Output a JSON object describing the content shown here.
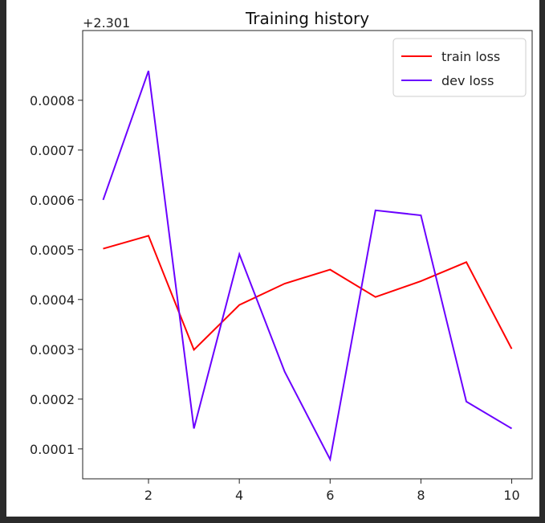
{
  "chart_data": {
    "type": "line",
    "title": "Training history",
    "y_offset_label": "+2.301",
    "x": [
      1,
      2,
      3,
      4,
      5,
      6,
      7,
      8,
      9,
      10
    ],
    "x_ticks": [
      2,
      4,
      6,
      8,
      10
    ],
    "y_ticks": [
      0.0001,
      0.0002,
      0.0003,
      0.0004,
      0.0005,
      0.0006,
      0.0007,
      0.0008
    ],
    "y_tick_labels": [
      "0.0001",
      "0.0002",
      "0.0003",
      "0.0004",
      "0.0005",
      "0.0006",
      "0.0007",
      "0.0008"
    ],
    "xlim": [
      0.55,
      10.45
    ],
    "ylim": [
      4e-05,
      0.00094
    ],
    "grid": false,
    "legend_position": "top-right",
    "series": [
      {
        "name": "train loss",
        "color": "#ff0000",
        "values": [
          0.000502,
          0.000528,
          0.000299,
          0.000389,
          0.000432,
          0.00046,
          0.000405,
          0.000437,
          0.000475,
          0.000301
        ]
      },
      {
        "name": "dev loss",
        "color": "#6a00ff",
        "values": [
          0.0006,
          0.000859,
          0.000141,
          0.000491,
          0.000255,
          7.9e-05,
          0.000579,
          0.000569,
          0.000195,
          0.000141
        ]
      }
    ]
  }
}
